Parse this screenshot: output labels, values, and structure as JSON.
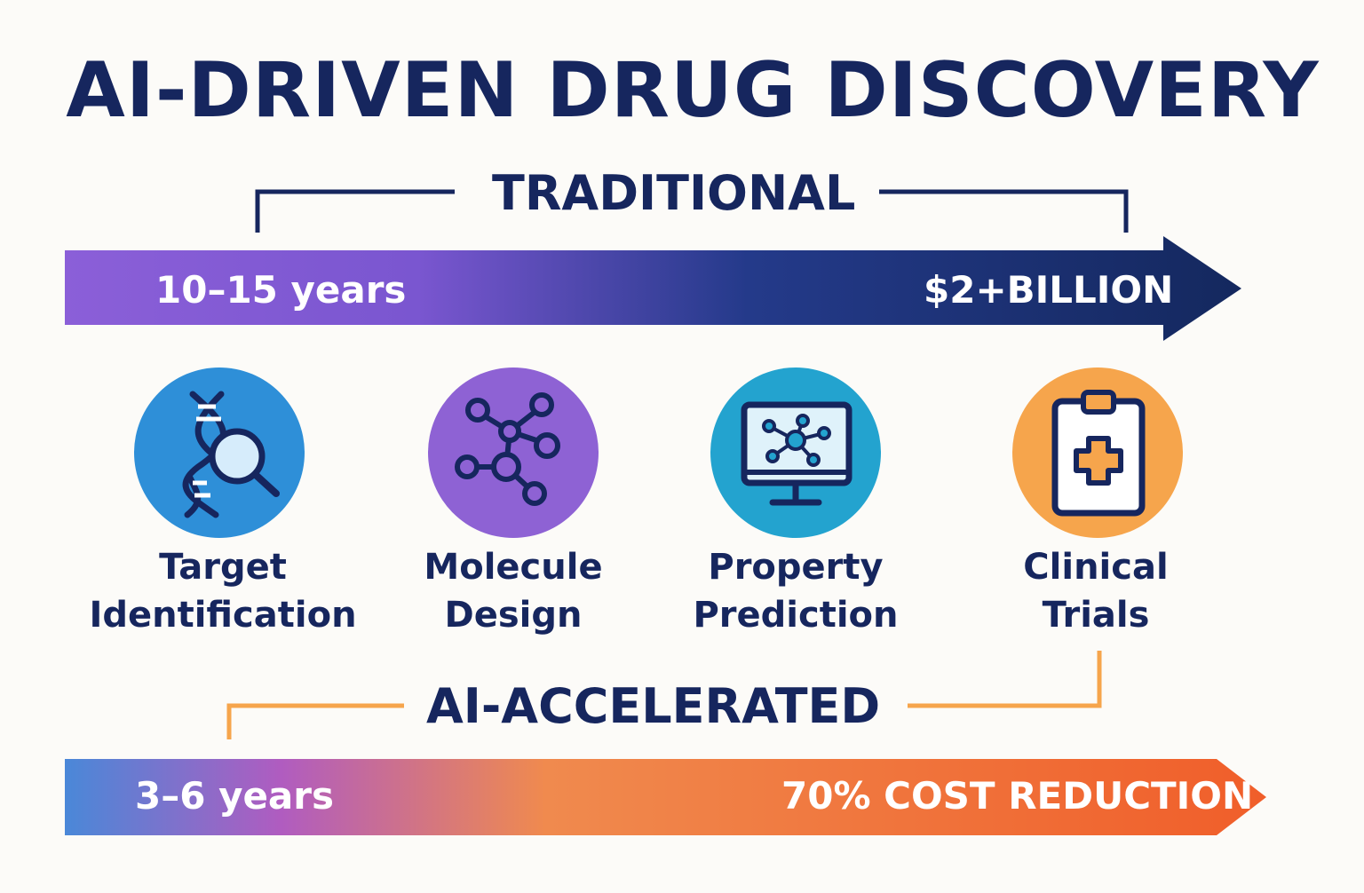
{
  "title": "AI-DRIVEN DRUG DISCOVERY",
  "traditional": {
    "label": "TRADITIONAL",
    "duration": "10–15 years",
    "cost": "$2+BILLION"
  },
  "stages": [
    {
      "line1": "Target",
      "line2": "Identification",
      "icon": "dna-magnifier-icon",
      "color": "#2e8fd8"
    },
    {
      "line1": "Molecule",
      "line2": "Design",
      "icon": "molecule-icon",
      "color": "#8e62d4"
    },
    {
      "line1": "Property",
      "line2": "Prediction",
      "icon": "monitor-molecule-icon",
      "color": "#23a3cf"
    },
    {
      "line1": "Clinical",
      "line2": "Trials",
      "icon": "clipboard-medical-icon",
      "color": "#f6a54c"
    }
  ],
  "ai": {
    "label": "AI-ACCELERATED",
    "duration": "3–6 years",
    "cost": "70% COST REDUCTION"
  },
  "colors": {
    "navy": "#16265e",
    "purple": "#8b5fd8",
    "orange": "#f28a3c",
    "blue": "#4a88d8"
  }
}
